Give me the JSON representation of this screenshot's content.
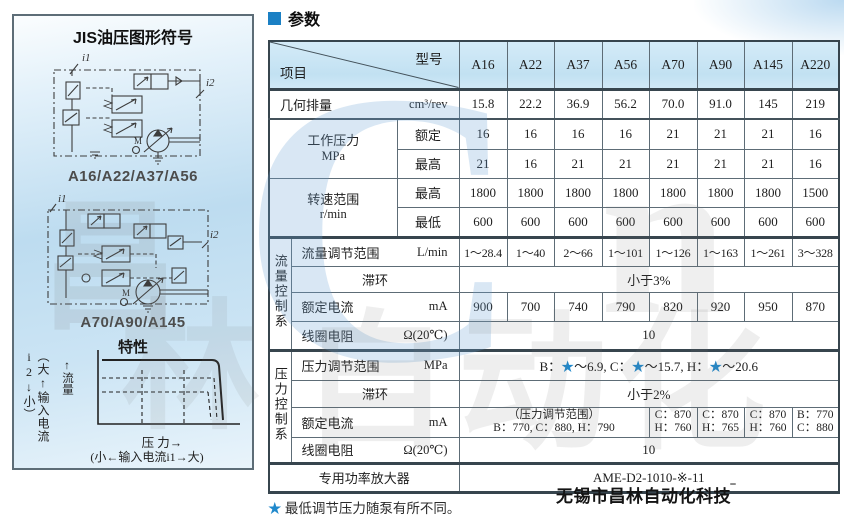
{
  "page": {
    "section_title": "参数",
    "footnote_star": "★",
    "footnote_text": " 最低调节压力随泵有所不同。"
  },
  "left_panel": {
    "title": "JIS油压图形符号",
    "diagram1_caption": "A16/A22/A37/A56",
    "diagram2_caption": "A70/A90/A145",
    "diagram_labels": {
      "i1": "i1",
      "i2": "i2",
      "m1": "M",
      "m2": "M"
    },
    "chart": {
      "title": "特性",
      "y_axis_label": "（大↑输入电流i2↓小）",
      "flow_label": "↑流量",
      "x_axis_label": "压 力→",
      "x_axis_sub_label": "(小←输入电流i1→大)"
    }
  },
  "table": {
    "corner": {
      "top_right": "型号",
      "bottom_left": "项目"
    },
    "columns": [
      "A16",
      "A22",
      "A37",
      "A56",
      "A70",
      "A90",
      "A145",
      "A220"
    ],
    "rows": {
      "displacement": {
        "label": "几何排量",
        "unit": "cm³/rev",
        "values": [
          "15.8",
          "22.2",
          "36.9",
          "56.2",
          "70.0",
          "91.0",
          "145",
          "219"
        ]
      },
      "working_pressure": {
        "label": "工作压力",
        "unit": "MPa",
        "rated": {
          "label": "额定",
          "values": [
            "16",
            "16",
            "16",
            "16",
            "21",
            "21",
            "21",
            "16"
          ]
        },
        "max": {
          "label": "最高",
          "values": [
            "21",
            "16",
            "21",
            "21",
            "21",
            "21",
            "21",
            "16"
          ]
        }
      },
      "speed_range": {
        "label": "转速范围",
        "unit": "r/min",
        "max": {
          "label": "最高",
          "values": [
            "1800",
            "1800",
            "1800",
            "1800",
            "1800",
            "1800",
            "1800",
            "1500"
          ]
        },
        "min": {
          "label": "最低",
          "values": [
            "600",
            "600",
            "600",
            "600",
            "600",
            "600",
            "600",
            "600"
          ]
        }
      },
      "flow_group": {
        "group_label": "流量控制系",
        "range": {
          "label": "流量调节范围",
          "unit": "L/min",
          "values": [
            "1～28.4",
            "1～40",
            "2～66",
            "1～101",
            "1～126",
            "1～163",
            "1～261",
            "3～328"
          ]
        },
        "hysteresis": {
          "label": "滞环",
          "value": "小于3%"
        },
        "rated_current": {
          "label": "额定电流",
          "unit": "mA",
          "values": [
            "900",
            "700",
            "740",
            "790",
            "820",
            "920",
            "950",
            "870"
          ]
        },
        "coil_resistance": {
          "label": "线圈电阻",
          "unit": "Ω(20℃)",
          "value": "10"
        }
      },
      "pressure_group": {
        "group_label": "压力控制系",
        "range": {
          "label": "压力调节范围",
          "unit": "MPa",
          "value": "B：★～6.9, C：★～15.7, H：★～20.6"
        },
        "hysteresis": {
          "label": "滞环",
          "value": "小于2%"
        },
        "rated_current": {
          "label": "额定电流",
          "unit": "mA",
          "span_line1": "（压力调节范围）",
          "span_line2": "B：770, C：880, H：790",
          "cells": [
            {
              "line1": "C：870",
              "line2": "H：760"
            },
            {
              "line1": "C：870",
              "line2": "H：765"
            },
            {
              "line1": "C：870",
              "line2": "H：760"
            },
            {
              "line1": "B：770",
              "line2": "C：880"
            }
          ]
        },
        "coil_resistance": {
          "label": "线圈电阻",
          "unit": "Ω(20℃)",
          "value": "10"
        }
      },
      "amplifier": {
        "label": "专用功率放大器",
        "value": "AME-D2-1010-※-11"
      }
    }
  },
  "watermark": {
    "big_letter": "C",
    "mid_letter": "n",
    "panel_char": "昌",
    "panel_char2": "林",
    "bottom_text": "自动化",
    "brand": "无锡市昌林自动化科技",
    "brand_mark": "‾"
  },
  "colors": {
    "accent_blue": "#1b80c4",
    "header_blue": "#c7e3f3",
    "star_blue": "#2089cc"
  }
}
